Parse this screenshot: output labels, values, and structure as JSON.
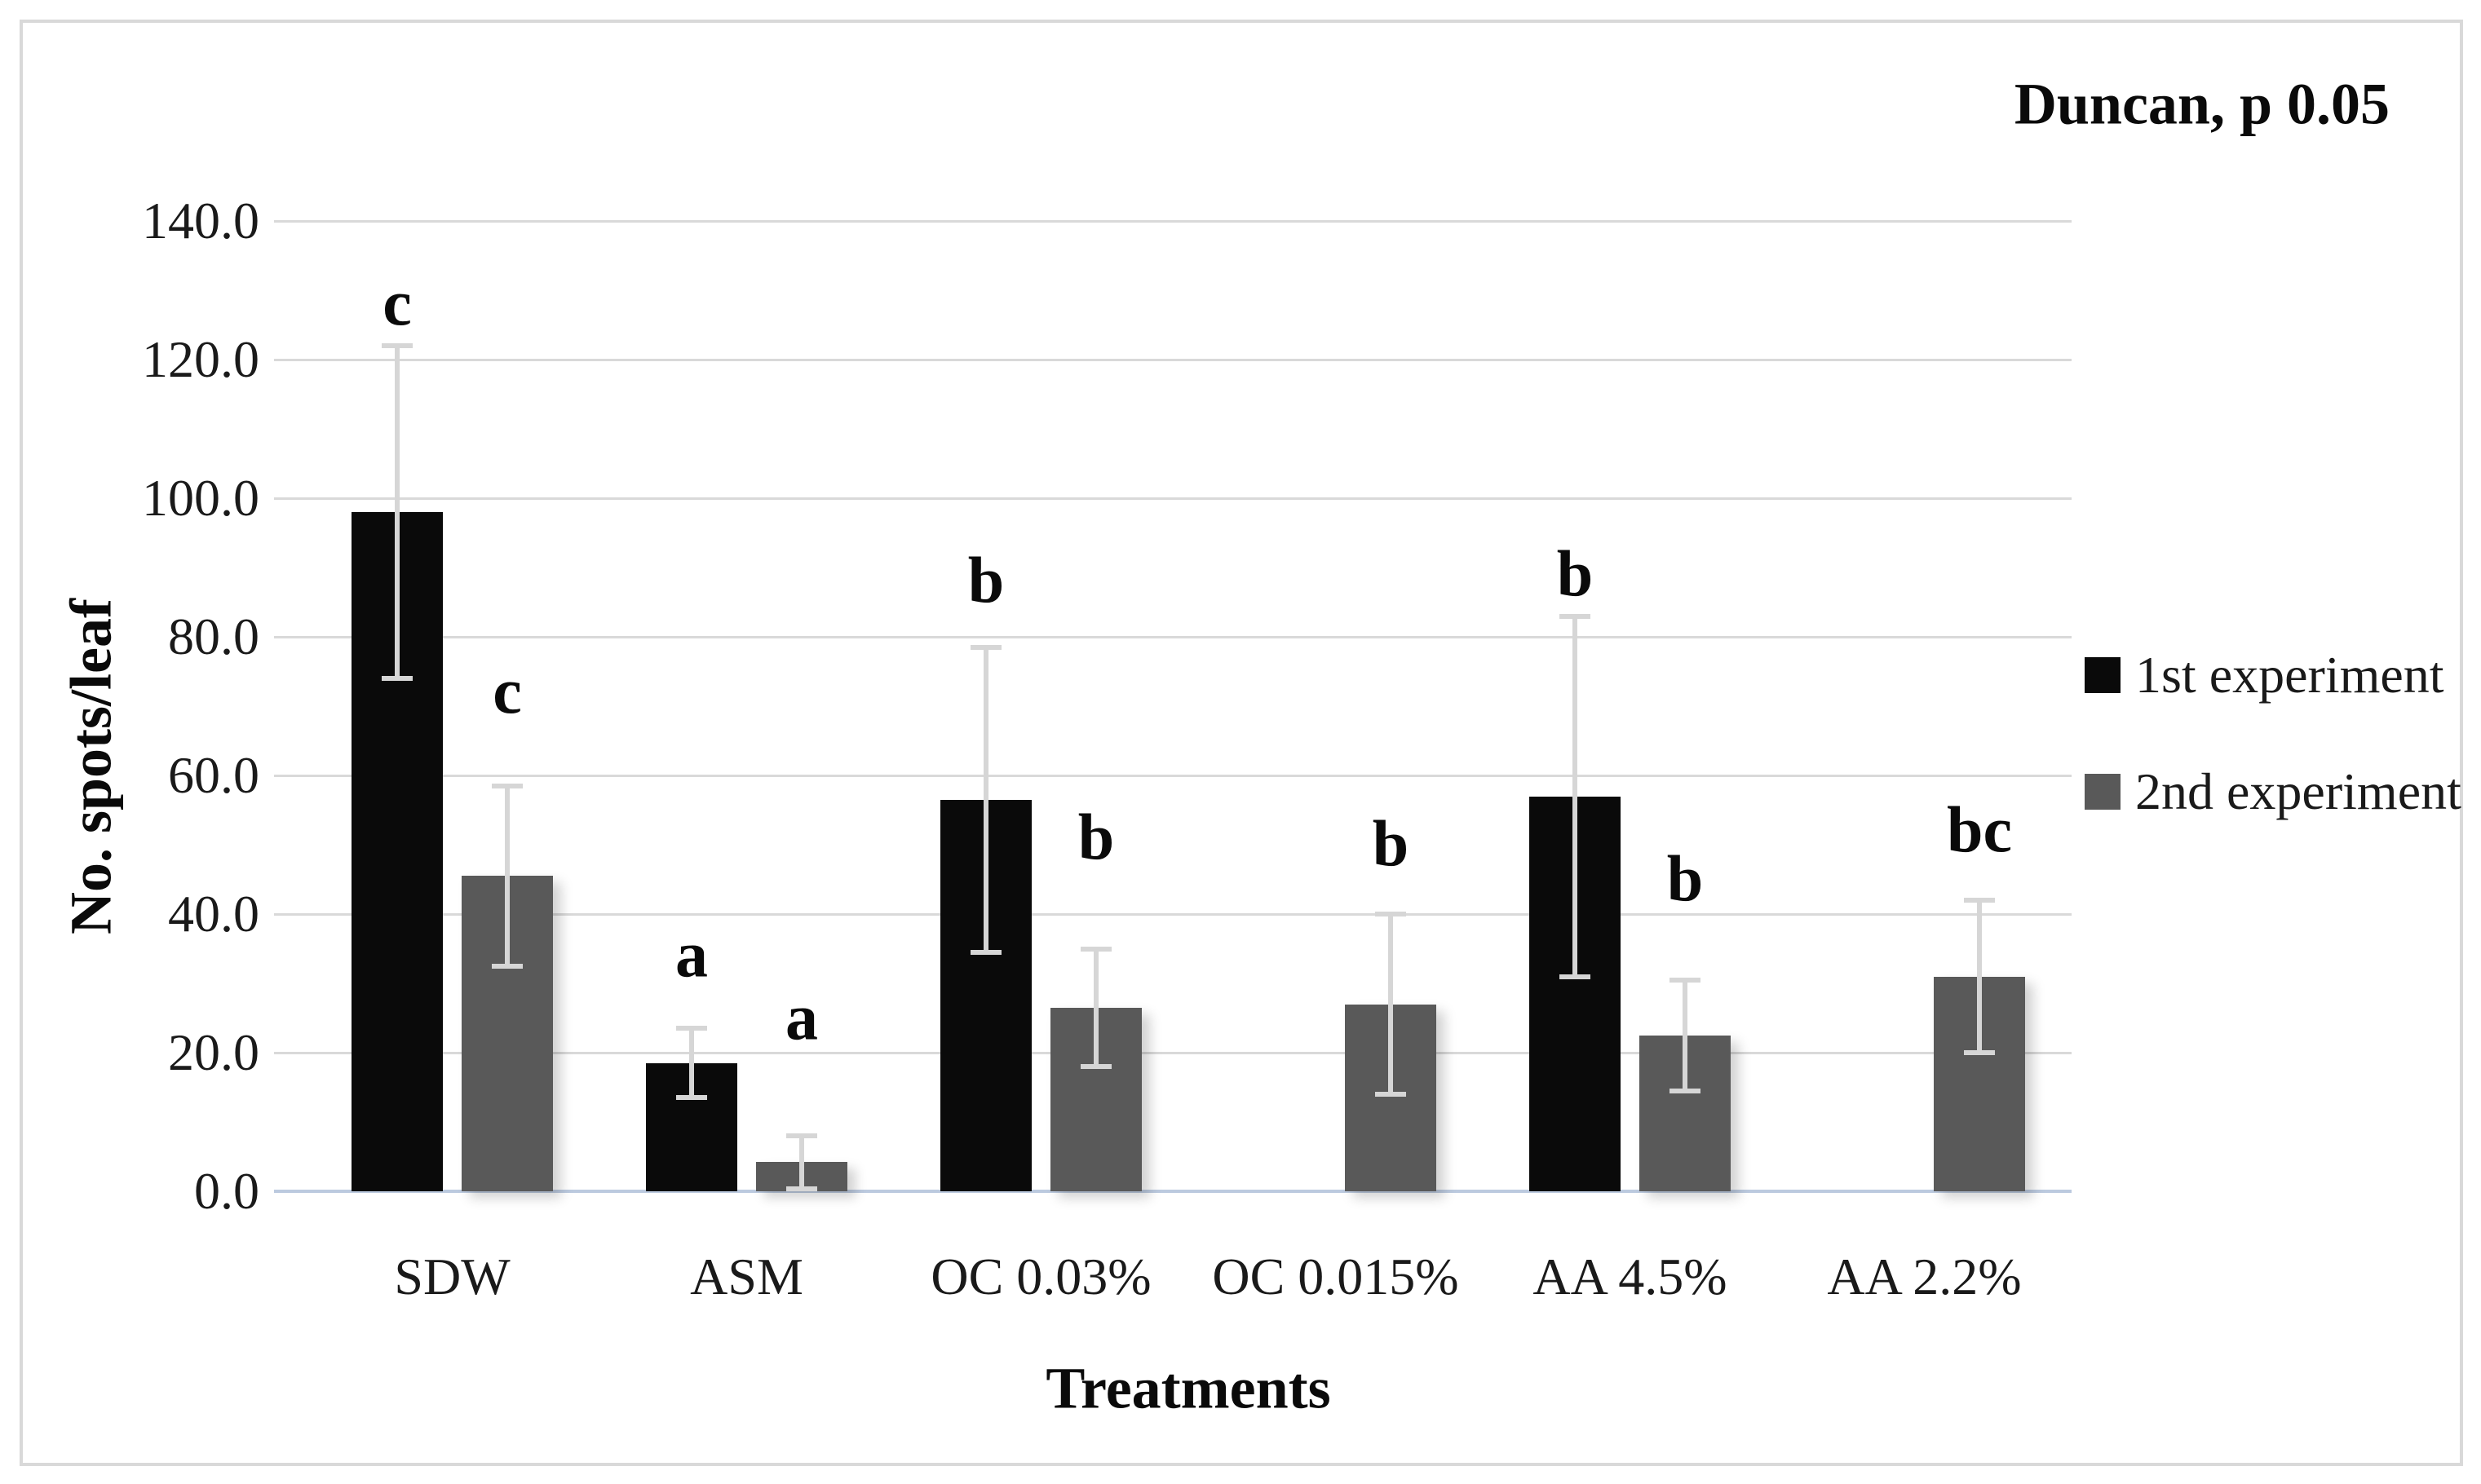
{
  "figure": {
    "annotation": "Duncan, p 0.05",
    "y_axis_title": "No. spots/leaf",
    "x_axis_title": "Treatments"
  },
  "colors": {
    "series1": "#0a0a0a",
    "series2": "#595959",
    "gridline": "#d9d9d9",
    "axis_line": "#bccadf",
    "error_bar": "#d6d6d6",
    "border": "#d9d9d9"
  },
  "chart_data": {
    "type": "bar",
    "title": "Duncan, p 0.05",
    "xlabel": "Treatments",
    "ylabel": "No. spots/leaf",
    "ylim": [
      0,
      140
    ],
    "ytick_step": 20,
    "ytick_labels": [
      "0.0",
      "20.0",
      "40.0",
      "60.0",
      "80.0",
      "100.0",
      "120.0",
      "140.0"
    ],
    "grid": true,
    "legend_position": "right",
    "categories": [
      "SDW",
      "ASM",
      "OC 0.03%",
      "OC 0.015%",
      "AA 4.5%",
      "AA 2.2%"
    ],
    "series": [
      {
        "name": "1st experiment",
        "color": "#0a0a0a",
        "values": [
          98,
          18.5,
          56.5,
          null,
          57,
          null
        ],
        "errors": [
          24,
          5,
          22,
          null,
          26,
          null
        ],
        "letters": [
          "c",
          "a",
          "b",
          "",
          "b",
          ""
        ],
        "letter_y": [
          128,
          34,
          88,
          null,
          89,
          null
        ]
      },
      {
        "name": "2nd experiment",
        "color": "#595959",
        "values": [
          45.5,
          4.2,
          26.5,
          27,
          22.5,
          31
        ],
        "errors": [
          13,
          3.8,
          8.5,
          13,
          8,
          11
        ],
        "letters": [
          "c",
          "a",
          "b",
          "b",
          "b",
          "bc"
        ],
        "letter_y": [
          72,
          25,
          51,
          50,
          45,
          52
        ]
      }
    ]
  }
}
